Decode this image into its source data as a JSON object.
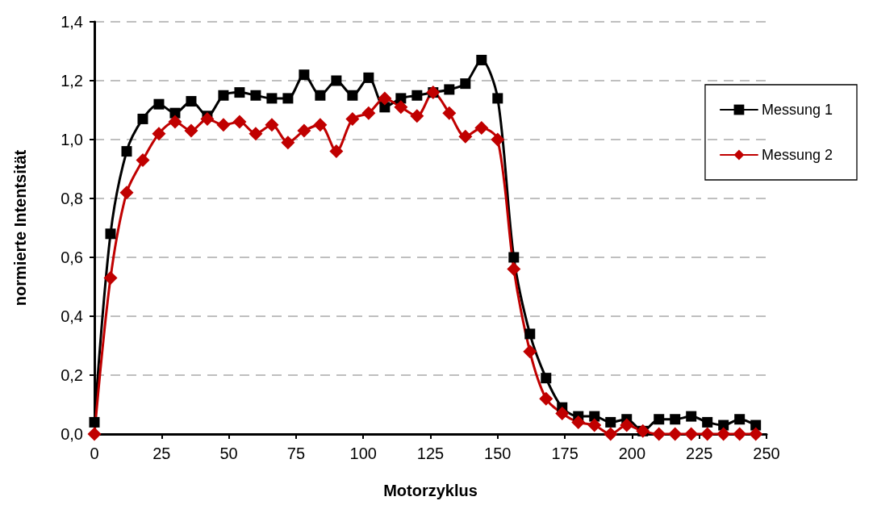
{
  "chart_data": {
    "type": "line",
    "xlabel": "Motorzyklus",
    "ylabel": "normierte Intentsität",
    "x": [
      0,
      6,
      12,
      18,
      24,
      30,
      36,
      42,
      48,
      54,
      60,
      66,
      72,
      78,
      84,
      90,
      96,
      102,
      108,
      114,
      120,
      126,
      132,
      138,
      144,
      150,
      156,
      162,
      168,
      174,
      180,
      186,
      192,
      198,
      204,
      210,
      216,
      222,
      228,
      234,
      240,
      246
    ],
    "series": [
      {
        "name": "Messung 1",
        "color": "#000000",
        "marker": "square",
        "values": [
          0.04,
          0.68,
          0.96,
          1.07,
          1.12,
          1.09,
          1.13,
          1.08,
          1.15,
          1.16,
          1.15,
          1.14,
          1.14,
          1.22,
          1.15,
          1.2,
          1.15,
          1.21,
          1.11,
          1.14,
          1.15,
          1.16,
          1.17,
          1.19,
          1.27,
          1.14,
          0.6,
          0.34,
          0.19,
          0.09,
          0.06,
          0.06,
          0.04,
          0.05,
          0.01,
          0.05,
          0.05,
          0.06,
          0.04,
          0.03,
          0.05,
          0.03
        ]
      },
      {
        "name": "Messung 2",
        "color": "#c00000",
        "marker": "diamond",
        "values": [
          0,
          0.53,
          0.82,
          0.93,
          1.02,
          1.06,
          1.03,
          1.07,
          1.05,
          1.06,
          1.02,
          1.05,
          0.99,
          1.03,
          1.05,
          0.96,
          1.07,
          1.09,
          1.14,
          1.11,
          1.08,
          1.16,
          1.09,
          1.01,
          1.04,
          1,
          0.56,
          0.28,
          0.12,
          0.07,
          0.04,
          0.03,
          0,
          0.03,
          0.01,
          0,
          0,
          0,
          0,
          0,
          0,
          0
        ]
      }
    ],
    "xlim": [
      0,
      250
    ],
    "xticks": [
      0,
      25,
      50,
      75,
      100,
      125,
      150,
      175,
      200,
      225,
      250
    ],
    "ylim": [
      0,
      1.4
    ],
    "yticks": [
      {
        "value": 0,
        "label": "0,0"
      },
      {
        "value": 0.2,
        "label": "0,2"
      },
      {
        "value": 0.4,
        "label": "0,4"
      },
      {
        "value": 0.6,
        "label": "0,6"
      },
      {
        "value": 0.8,
        "label": "0,8"
      },
      {
        "value": 1,
        "label": "1,0"
      },
      {
        "value": 1.2,
        "label": "1,2"
      },
      {
        "value": 1.4,
        "label": "1,4"
      }
    ],
    "grid": "y",
    "legend": "top right"
  }
}
